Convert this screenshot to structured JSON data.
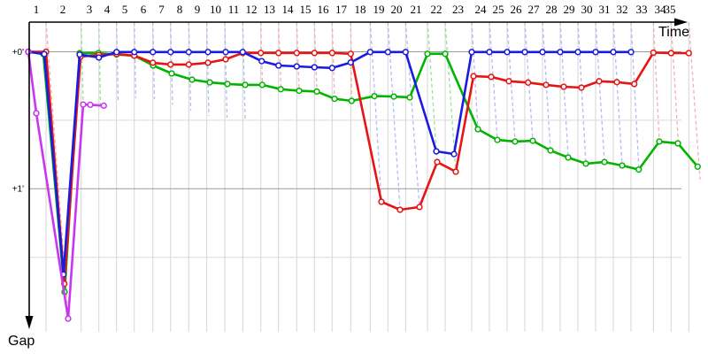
{
  "chart_data": {
    "type": "line",
    "title": "",
    "description": "Race history chart: gap (minutes) vs race time, lap numbers 1-35 along top axis; dashed vertical lines mark each lap colored by lap leader; four car traces with circular lap markers.",
    "x_axis": {
      "label": "Time",
      "lap_count": 35
    },
    "y_axis": {
      "label": "Gap",
      "direction": "down",
      "ticks": [
        {
          "label": "+0'",
          "gap_s": 0
        },
        {
          "label": "+1'",
          "gap_s": 60
        }
      ],
      "gridlines_gap_s": [
        0,
        30,
        60,
        90
      ],
      "ylim_s": [
        0,
        120
      ]
    },
    "legend": "none",
    "colors": {
      "red": "#e81414",
      "green": "#00b400",
      "blue": "#1a1ae0",
      "magenta": "#c935f2",
      "red_dashed": "#f6aeae",
      "green_dashed": "#9bdf9b",
      "blue_dashed": "#b4baf4",
      "grid_strong": "#9a9a9a",
      "grid_light": "#dadada",
      "grid_vertical": "#d6d6d6",
      "axis": "#000000"
    },
    "laps": [
      {
        "n": 1,
        "x": 52,
        "leader": "red",
        "label_x": 41,
        "end_x": 77,
        "end_gap_s": 116.1
      },
      {
        "n": 2,
        "x": 91.7,
        "leader": "green",
        "label_x": 71,
        "end_x": 94,
        "end_gap_s": 22.3
      },
      {
        "n": 3,
        "x": 111.7,
        "leader": "green",
        "label_x": 101,
        "end_x": 113.5,
        "end_gap_s": 23.4
      },
      {
        "n": 4,
        "x": 131.7,
        "leader": "blue",
        "label_x": 121,
        "end_x": 133.5,
        "end_gap_s": 21.1
      },
      {
        "n": 5,
        "x": 151.7,
        "leader": "blue",
        "label_x": 141,
        "end_x": 153.5,
        "end_gap_s": 20.3
      },
      {
        "n": 6,
        "x": 172.7,
        "leader": "blue",
        "label_x": 162,
        "end_x": 174.5,
        "end_gap_s": 20.7
      },
      {
        "n": 7,
        "x": 192.7,
        "leader": "blue",
        "label_x": 182.5,
        "end_x": 195,
        "end_gap_s": 23.1
      },
      {
        "n": 8,
        "x": 213.3,
        "leader": "blue",
        "label_x": 203,
        "end_x": 215.5,
        "end_gap_s": 25.8
      },
      {
        "n": 9,
        "x": 233.6,
        "leader": "blue",
        "label_x": 223,
        "end_x": 236,
        "end_gap_s": 28.1
      },
      {
        "n": 10,
        "x": 254,
        "leader": "blue",
        "label_x": 243.5,
        "end_x": 256.5,
        "end_gap_s": 28.9
      },
      {
        "n": 11,
        "x": 274.3,
        "leader": "blue",
        "label_x": 264,
        "end_x": 277,
        "end_gap_s": 29.7
      },
      {
        "n": 12,
        "x": 294.7,
        "leader": "red",
        "label_x": 284,
        "end_x": 296.5,
        "end_gap_s": 14.7
      },
      {
        "n": 13,
        "x": 314.7,
        "leader": "red",
        "label_x": 304.5,
        "end_x": 317.5,
        "end_gap_s": 16.5
      },
      {
        "n": 14,
        "x": 335.3,
        "leader": "red",
        "label_x": 325,
        "end_x": 338,
        "end_gap_s": 17.2
      },
      {
        "n": 15,
        "x": 355.3,
        "leader": "red",
        "label_x": 345,
        "end_x": 358,
        "end_gap_s": 17.4
      },
      {
        "n": 16,
        "x": 375.3,
        "leader": "red",
        "label_x": 365,
        "end_x": 378,
        "end_gap_s": 20.7
      },
      {
        "n": 17,
        "x": 396.3,
        "leader": "red",
        "label_x": 385.5,
        "end_x": 397.5,
        "end_gap_s": 21.7
      },
      {
        "n": 18,
        "x": 418.3,
        "leader": "blue",
        "label_x": 407,
        "end_x": 431,
        "end_gap_s": 65.7
      },
      {
        "n": 19,
        "x": 438.3,
        "leader": "blue",
        "label_x": 428,
        "end_x": 452,
        "end_gap_s": 69.2
      },
      {
        "n": 20,
        "x": 458.3,
        "leader": "blue",
        "label_x": 448,
        "end_x": 474,
        "end_gap_s": 68
      },
      {
        "n": 21,
        "x": 483,
        "leader": "green",
        "label_x": 470,
        "end_x": 494,
        "end_gap_s": 48.6
      },
      {
        "n": 22,
        "x": 503,
        "leader": "green",
        "label_x": 493,
        "end_x": 515,
        "end_gap_s": 52.5
      },
      {
        "n": 23,
        "x": 533,
        "leader": "blue",
        "label_x": 517.5,
        "end_x": 540,
        "end_gap_s": 33.9
      },
      {
        "n": 24,
        "x": 553,
        "leader": "blue",
        "label_x": 543,
        "end_x": 562,
        "end_gap_s": 38.6
      },
      {
        "n": 25,
        "x": 573,
        "leader": "blue",
        "label_x": 563,
        "end_x": 582,
        "end_gap_s": 39.3
      },
      {
        "n": 26,
        "x": 593,
        "leader": "blue",
        "label_x": 583,
        "end_x": 602,
        "end_gap_s": 39
      },
      {
        "n": 27,
        "x": 613,
        "leader": "blue",
        "label_x": 603,
        "end_x": 622,
        "end_gap_s": 43.2
      },
      {
        "n": 28,
        "x": 633,
        "leader": "blue",
        "label_x": 623,
        "end_x": 642,
        "end_gap_s": 46.3
      },
      {
        "n": 29,
        "x": 653,
        "leader": "blue",
        "label_x": 643,
        "end_x": 662,
        "end_gap_s": 49
      },
      {
        "n": 30,
        "x": 673,
        "leader": "blue",
        "label_x": 663,
        "end_x": 683,
        "end_gap_s": 48.3
      },
      {
        "n": 31,
        "x": 693,
        "leader": "blue",
        "label_x": 683,
        "end_x": 703,
        "end_gap_s": 49.8
      },
      {
        "n": 32,
        "x": 713,
        "leader": "blue",
        "label_x": 703,
        "end_x": 722,
        "end_gap_s": 51.8
      },
      {
        "n": 33,
        "x": 738.3,
        "leader": "red",
        "label_x": 725,
        "end_x": 745,
        "end_gap_s": 39.3
      },
      {
        "n": 34,
        "x": 758.3,
        "leader": "red",
        "label_x": 746,
        "end_x": 766.5,
        "end_gap_s": 40.3
      },
      {
        "n": 35,
        "x": 778.3,
        "leader": "red",
        "label_x": 757,
        "end_x": 791,
        "end_gap_s": 56
      }
    ],
    "series": [
      {
        "name": "green-car",
        "color_key": "green",
        "points": [
          [
            32,
            0
          ],
          [
            49,
            1
          ],
          [
            73,
            105.2
          ],
          [
            90,
            0.6
          ],
          [
            111.3,
            0.6
          ],
          [
            131.7,
            1.2
          ],
          [
            151.7,
            1.7
          ],
          [
            173,
            6
          ],
          [
            194,
            9.5
          ],
          [
            217,
            12.2
          ],
          [
            237,
            13.4
          ],
          [
            257,
            14.1
          ],
          [
            277,
            14.5
          ],
          [
            296.3,
            14.5
          ],
          [
            317.3,
            16.4
          ],
          [
            338,
            17.1
          ],
          [
            358,
            17.4
          ],
          [
            378,
            20.6
          ],
          [
            397.3,
            21.5
          ],
          [
            423,
            19.4
          ],
          [
            445,
            19.6
          ],
          [
            463,
            20
          ],
          [
            483,
            0.9
          ],
          [
            503,
            0.9
          ],
          [
            540,
            33.9
          ],
          [
            562,
            38.6
          ],
          [
            582,
            39.3
          ],
          [
            602,
            39
          ],
          [
            622,
            43.2
          ],
          [
            642,
            46.3
          ],
          [
            662,
            49
          ],
          [
            683,
            48.3
          ],
          [
            703,
            49.8
          ],
          [
            721.7,
            51.6
          ],
          [
            745,
            39.3
          ],
          [
            766,
            40.1
          ],
          [
            788.3,
            50.3
          ]
        ]
      },
      {
        "name": "red-car",
        "color_key": "red",
        "points": [
          [
            32,
            0
          ],
          [
            52,
            0
          ],
          [
            72.7,
            101.6
          ],
          [
            91,
            2.1
          ],
          [
            111.7,
            1.4
          ],
          [
            131.7,
            1
          ],
          [
            151.7,
            1.7
          ],
          [
            172.7,
            4.8
          ],
          [
            192.7,
            5.6
          ],
          [
            213.3,
            5.6
          ],
          [
            235,
            4.8
          ],
          [
            255,
            3.3
          ],
          [
            274.3,
            0.5
          ],
          [
            294.7,
            0.5
          ],
          [
            314.7,
            0.5
          ],
          [
            335.3,
            0.5
          ],
          [
            355.3,
            0.5
          ],
          [
            375.3,
            0.5
          ],
          [
            396.3,
            0.9
          ],
          [
            431,
            65.7
          ],
          [
            452,
            69.2
          ],
          [
            474,
            68
          ],
          [
            494,
            48.3
          ],
          [
            515,
            52.5
          ],
          [
            535,
            10.7
          ],
          [
            555,
            11
          ],
          [
            575,
            12.9
          ],
          [
            596.7,
            13.5
          ],
          [
            617,
            14.5
          ],
          [
            637,
            15.3
          ],
          [
            657,
            15.7
          ],
          [
            677,
            12.9
          ],
          [
            697,
            13.3
          ],
          [
            716.7,
            14.1
          ],
          [
            738.3,
            0.4
          ],
          [
            758.3,
            0.6
          ],
          [
            778.3,
            0.6
          ]
        ]
      },
      {
        "name": "blue-car",
        "color_key": "blue",
        "points": [
          [
            32,
            0
          ],
          [
            50,
            1
          ],
          [
            71.7,
            97.5
          ],
          [
            90,
            1.2
          ],
          [
            111.7,
            2.5
          ],
          [
            131.7,
            0.1
          ],
          [
            151.7,
            0.1
          ],
          [
            172.7,
            0.1
          ],
          [
            192.7,
            0.1
          ],
          [
            213.3,
            0.1
          ],
          [
            235,
            0.1
          ],
          [
            255,
            0.1
          ],
          [
            274.3,
            0.1
          ],
          [
            295.7,
            4.1
          ],
          [
            314.7,
            6
          ],
          [
            335.3,
            6.4
          ],
          [
            355.3,
            6.8
          ],
          [
            375.3,
            7.1
          ],
          [
            396.3,
            4.7
          ],
          [
            418.3,
            0.1
          ],
          [
            438.3,
            0.1
          ],
          [
            458.3,
            0.1
          ],
          [
            493,
            43.6
          ],
          [
            513,
            44.8
          ],
          [
            533,
            0.1
          ],
          [
            553,
            0.1
          ],
          [
            573,
            0.1
          ],
          [
            593,
            0.1
          ],
          [
            613,
            0.1
          ],
          [
            633,
            0.1
          ],
          [
            653,
            0.1
          ],
          [
            673,
            0.1
          ],
          [
            693,
            0.1
          ],
          [
            713,
            0.1
          ]
        ]
      },
      {
        "name": "magenta-car",
        "color_key": "magenta",
        "points": [
          [
            32,
            0
          ],
          [
            41,
            26.9
          ],
          [
            77,
            116.9
          ],
          [
            94,
            23.1
          ],
          [
            102,
            23.2
          ],
          [
            117.3,
            23.6
          ]
        ]
      }
    ]
  }
}
